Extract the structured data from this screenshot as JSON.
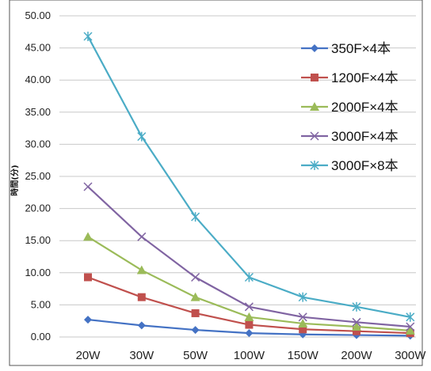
{
  "chart_data": {
    "type": "line",
    "title": "",
    "xlabel": "",
    "ylabel": "時間(分)",
    "categories": [
      "20W",
      "30W",
      "50W",
      "100W",
      "150W",
      "200W",
      "300W"
    ],
    "ylim": [
      0,
      50
    ],
    "yticks": [
      "0.00",
      "5.00",
      "10.00",
      "15.00",
      "20.00",
      "25.00",
      "30.00",
      "35.00",
      "40.00",
      "45.00",
      "50.00"
    ],
    "grid": "horizontal",
    "legend_position": "right",
    "series": [
      {
        "name": "350F×4本",
        "color": "#4472C4",
        "marker": "diamond",
        "values": [
          2.7,
          1.8,
          1.1,
          0.6,
          0.4,
          0.3,
          0.2
        ]
      },
      {
        "name": "1200F×4本",
        "color": "#C0504D",
        "marker": "square",
        "values": [
          9.3,
          6.2,
          3.7,
          1.9,
          1.2,
          0.9,
          0.6
        ]
      },
      {
        "name": "2000F×4本",
        "color": "#9BBB59",
        "marker": "triangle",
        "values": [
          15.6,
          10.4,
          6.2,
          3.1,
          2.1,
          1.6,
          1.0
        ]
      },
      {
        "name": "3000F×4本",
        "color": "#8064A2",
        "marker": "x",
        "values": [
          23.4,
          15.6,
          9.3,
          4.7,
          3.1,
          2.3,
          1.6
        ]
      },
      {
        "name": "3000F×8本",
        "color": "#4BACC6",
        "marker": "star",
        "values": [
          46.8,
          31.2,
          18.7,
          9.3,
          6.2,
          4.7,
          3.1
        ]
      }
    ]
  }
}
